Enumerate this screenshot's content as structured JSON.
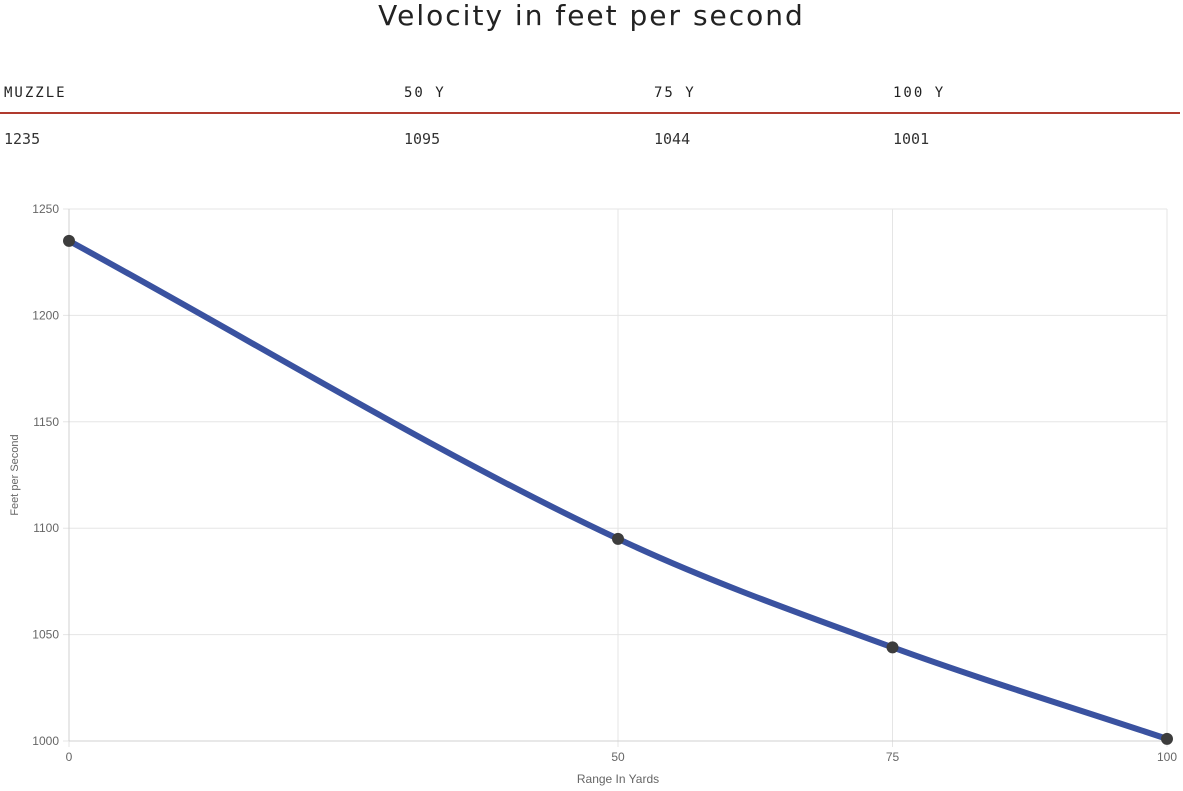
{
  "page": {
    "title": "Velocity in feet per second"
  },
  "table": {
    "headers": [
      "MUZZLE",
      "50 Y",
      "75 Y",
      "100 Y"
    ],
    "values": [
      "1235",
      "1095",
      "1044",
      "1001"
    ],
    "accent_color": "#b03a2e"
  },
  "chart_data": {
    "type": "line",
    "title": "",
    "xlabel": "Range In Yards",
    "ylabel": "Feet per Second",
    "x": [
      0,
      50,
      75,
      100
    ],
    "series": [
      {
        "values": [
          1235,
          1095,
          1044,
          1001
        ],
        "color": "#3a52a0",
        "point_color": "#3d3d3d"
      }
    ],
    "x_ticks": [
      "0",
      "50",
      "75",
      "100"
    ],
    "y_ticks": [
      "1000",
      "1050",
      "1100",
      "1150",
      "1200",
      "1250"
    ],
    "xlim": [
      0,
      100
    ],
    "ylim": [
      1000,
      1250
    ],
    "grid": true,
    "smooth": true,
    "legend": "none"
  }
}
